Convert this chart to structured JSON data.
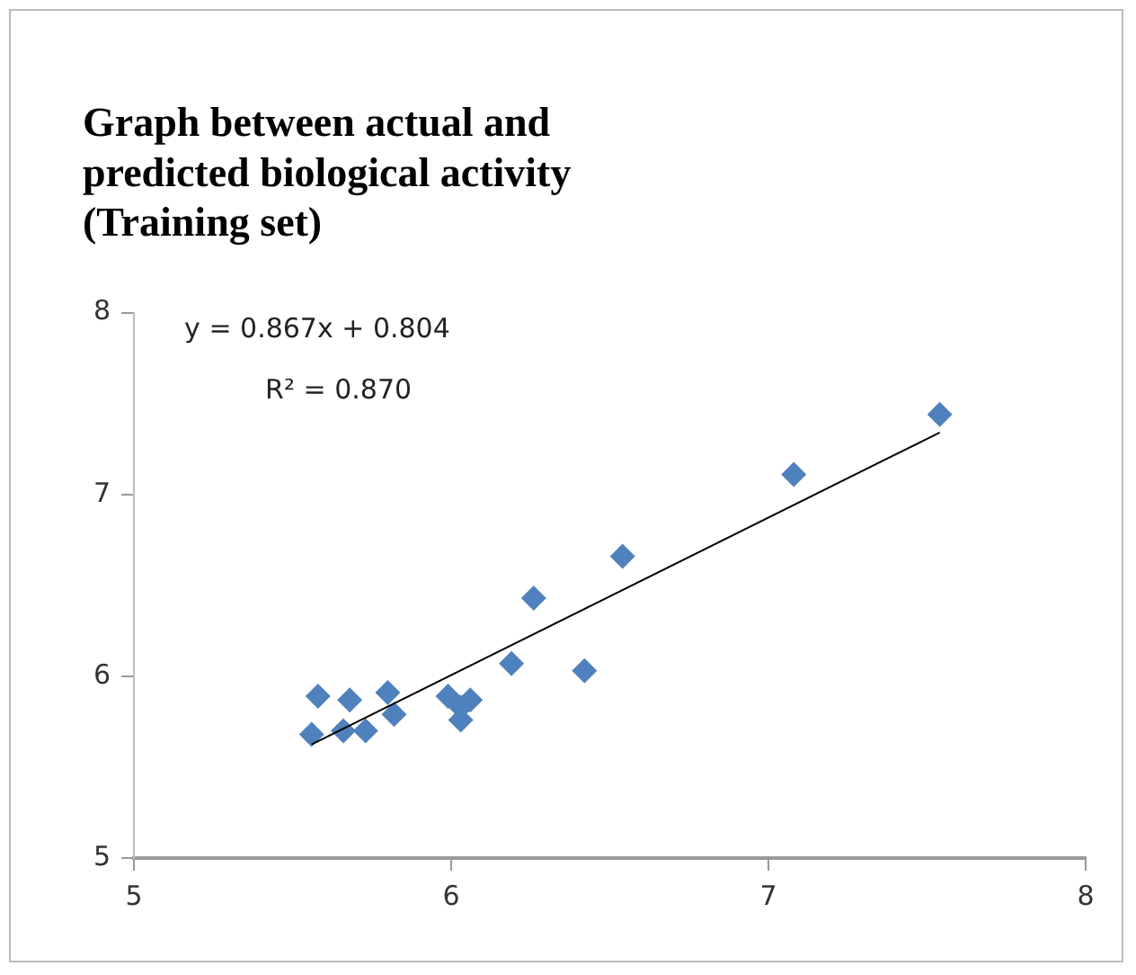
{
  "chart_data": {
    "type": "scatter",
    "title": "Graph between actual and predicted biological activity (Training set)",
    "annotations": [
      "y = 0.867x + 0.804",
      "R² = 0.870"
    ],
    "xlim": [
      5,
      8
    ],
    "xticks": [
      5,
      6,
      7,
      8
    ],
    "ylim": [
      5,
      8
    ],
    "yticks": [
      5,
      6,
      7,
      8
    ],
    "grid": false,
    "legend": false,
    "marker": "diamond",
    "series": [
      {
        "color": "#4f81bd",
        "x": [
          7.54,
          7.08,
          6.54,
          6.26,
          6.19,
          6.42,
          5.56,
          5.58,
          5.68,
          5.66,
          5.73,
          5.8,
          5.82,
          5.99,
          6.06,
          6.03,
          6.03
        ],
        "values": [
          7.44,
          7.11,
          6.66,
          6.43,
          6.07,
          6.03,
          5.68,
          5.89,
          5.87,
          5.7,
          5.7,
          5.91,
          5.79,
          5.89,
          5.87,
          5.76,
          5.83
        ]
      },
      {
        "type": "line",
        "color": "#000000",
        "marker": "none",
        "line_style": "solid",
        "x": [
          5.56,
          7.54
        ],
        "values": [
          5.625,
          7.341
        ]
      }
    ]
  }
}
